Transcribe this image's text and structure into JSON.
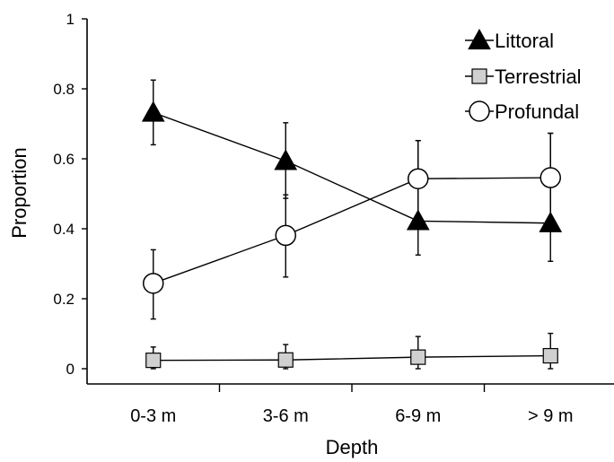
{
  "chart_data": {
    "type": "line",
    "xlabel": "Depth",
    "ylabel": "Proportion",
    "categories": [
      "0-3 m",
      "3-6 m",
      "6-9 m",
      "> 9 m"
    ],
    "ylim": [
      0,
      1
    ],
    "yticks": [
      0,
      0.2,
      0.4,
      0.6,
      0.8,
      1
    ],
    "ytick_labels": [
      "0",
      "0.2",
      "0.4",
      "0.6",
      "0.8",
      "1"
    ],
    "grid": false,
    "legend_position": "top-right",
    "series": [
      {
        "name": "Littoral",
        "marker": "filled-triangle",
        "values": [
          0.732,
          0.594,
          0.422,
          0.416
        ],
        "error_upper": [
          0.825,
          0.703,
          0.652,
          0.673
        ],
        "error_lower": [
          0.64,
          0.487,
          0.325,
          0.307
        ]
      },
      {
        "name": "Terrestrial",
        "marker": "gray-square",
        "values": [
          0.024,
          0.025,
          0.033,
          0.037
        ],
        "error_upper": [
          0.062,
          0.069,
          0.092,
          0.101
        ],
        "error_lower": [
          0.0,
          0.0,
          0.0,
          0.0
        ]
      },
      {
        "name": "Profundal",
        "marker": "open-circle",
        "values": [
          0.244,
          0.381,
          0.543,
          0.546
        ],
        "error_upper": [
          0.34,
          0.497,
          0.652,
          0.673
        ],
        "error_lower": [
          0.142,
          0.262,
          0.42,
          0.42
        ]
      }
    ],
    "colors": {
      "line": "#000000",
      "triangle_fill": "#000000",
      "square_fill": "#d0d0d0",
      "circle_fill": "#ffffff"
    }
  }
}
